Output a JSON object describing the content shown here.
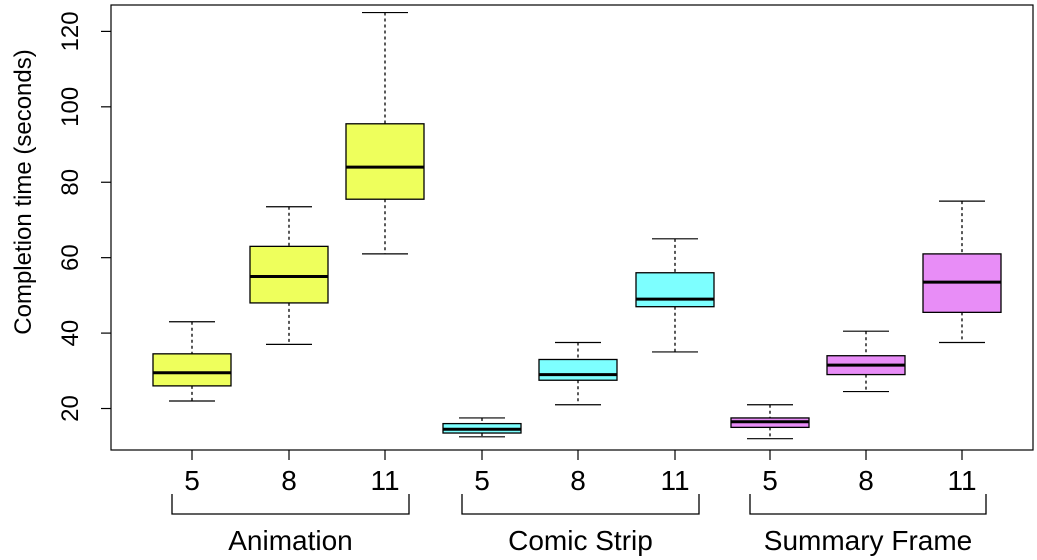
{
  "chart_data": {
    "type": "boxplot",
    "title": "",
    "xlabel": "",
    "ylabel": "Completion time (seconds)",
    "ylim": [
      9,
      127
    ],
    "yticks": [
      20,
      40,
      60,
      80,
      100,
      120
    ],
    "groups": [
      {
        "name": "Animation",
        "color": "#EEFF5C",
        "boxes": [
          {
            "label": "5",
            "min": 22,
            "q1": 26,
            "median": 29.5,
            "q3": 34.5,
            "max": 43
          },
          {
            "label": "8",
            "min": 37,
            "q1": 48,
            "median": 55,
            "q3": 63,
            "max": 73.5
          },
          {
            "label": "11",
            "min": 61,
            "q1": 75.5,
            "median": 84,
            "q3": 95.5,
            "max": 125
          }
        ]
      },
      {
        "name": "Comic Strip",
        "color": "#7DFFFF",
        "boxes": [
          {
            "label": "5",
            "min": 12.5,
            "q1": 13.5,
            "median": 14.5,
            "q3": 16,
            "max": 17.5
          },
          {
            "label": "8",
            "min": 21,
            "q1": 27.5,
            "median": 29,
            "q3": 33,
            "max": 37.5
          },
          {
            "label": "11",
            "min": 35,
            "q1": 47,
            "median": 49,
            "q3": 56,
            "max": 65
          }
        ]
      },
      {
        "name": "Summary Frame",
        "color": "#E88DF7",
        "boxes": [
          {
            "label": "5",
            "min": 12,
            "q1": 15,
            "median": 16.5,
            "q3": 17.5,
            "max": 21
          },
          {
            "label": "8",
            "min": 24.5,
            "q1": 29,
            "median": 31.5,
            "q3": 34,
            "max": 40.5
          },
          {
            "label": "11",
            "min": 37.5,
            "q1": 45.5,
            "median": 53.5,
            "q3": 61,
            "max": 75
          }
        ]
      }
    ]
  }
}
